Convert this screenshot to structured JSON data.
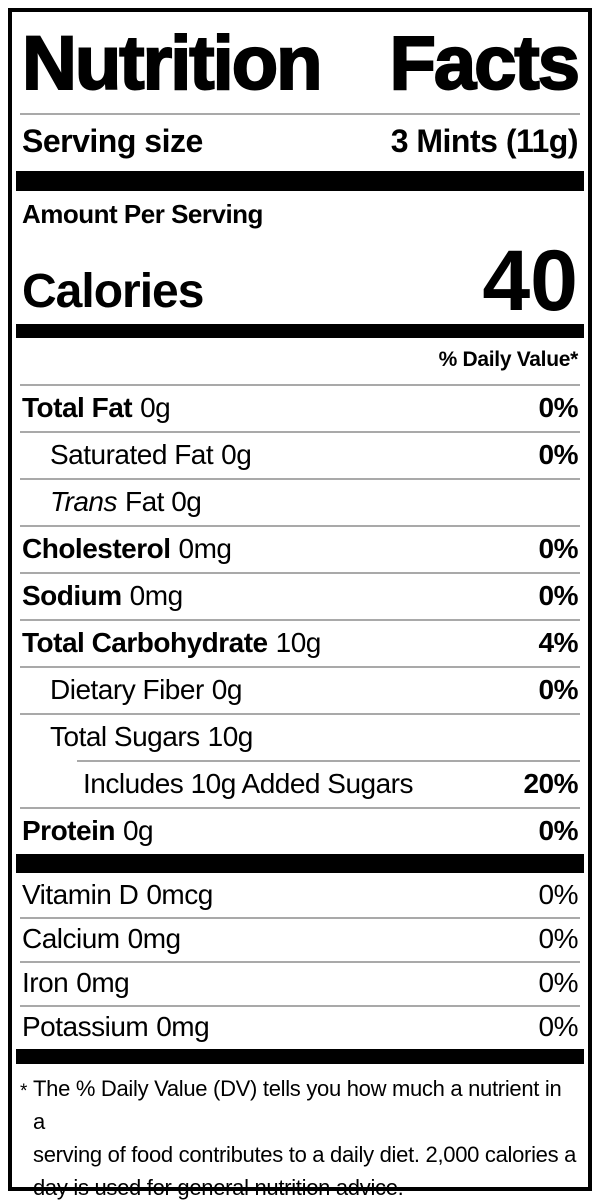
{
  "title_words": [
    "Nutrition",
    "Facts"
  ],
  "serving": {
    "label": "Serving size",
    "value": "3 Mints (11g)"
  },
  "amount_per_serving": "Amount Per Serving",
  "calories": {
    "label": "Calories",
    "value": "40"
  },
  "daily_value_header": "% Daily Value*",
  "nutrients": [
    {
      "name": "Total Fat",
      "amount": "0g",
      "percent": "0%",
      "emphasis": true,
      "indent": 0
    },
    {
      "name": "Saturated Fat",
      "amount": "0g",
      "percent": "0%",
      "emphasis": false,
      "indent": 1
    },
    {
      "name": "Trans",
      "amount": "Fat 0g",
      "percent": "",
      "emphasis": false,
      "italic": true,
      "indent": 1
    },
    {
      "name": "Cholesterol",
      "amount": "0mg",
      "percent": "0%",
      "emphasis": true,
      "indent": 0
    },
    {
      "name": "Sodium",
      "amount": "0mg",
      "percent": "0%",
      "emphasis": true,
      "indent": 0
    },
    {
      "name": "Total Carbohydrate",
      "amount": "10g",
      "percent": "4%",
      "emphasis": true,
      "indent": 0
    },
    {
      "name": "Dietary Fiber",
      "amount": "0g",
      "percent": "0%",
      "emphasis": false,
      "indent": 1
    },
    {
      "name": "Total Sugars",
      "amount": "10g",
      "percent": "",
      "emphasis": false,
      "indent": 1
    },
    {
      "name": "Includes 10g Added Sugars",
      "amount": "",
      "percent": "20%",
      "emphasis": false,
      "indent": 2,
      "divider_indented": true
    },
    {
      "name": "Protein",
      "amount": "0g",
      "percent": "0%",
      "emphasis": true,
      "indent": 0
    }
  ],
  "vitamins": [
    {
      "name": "Vitamin D",
      "amount": "0mcg",
      "percent": "0%"
    },
    {
      "name": "Calcium",
      "amount": "0mg",
      "percent": "0%"
    },
    {
      "name": "Iron",
      "amount": "0mg",
      "percent": "0%"
    },
    {
      "name": "Potassium",
      "amount": "0mg",
      "percent": "0%"
    }
  ],
  "footnote": {
    "marker": "*",
    "lines": [
      "The % Daily Value (DV) tells you how much a nutrient in a",
      "serving of food contributes to a daily diet. 2,000 calories a",
      "day is used for general nutrition advice."
    ]
  },
  "colors": {
    "ink": "#000000",
    "divider": "#a9a9a9",
    "background": "#ffffff"
  }
}
